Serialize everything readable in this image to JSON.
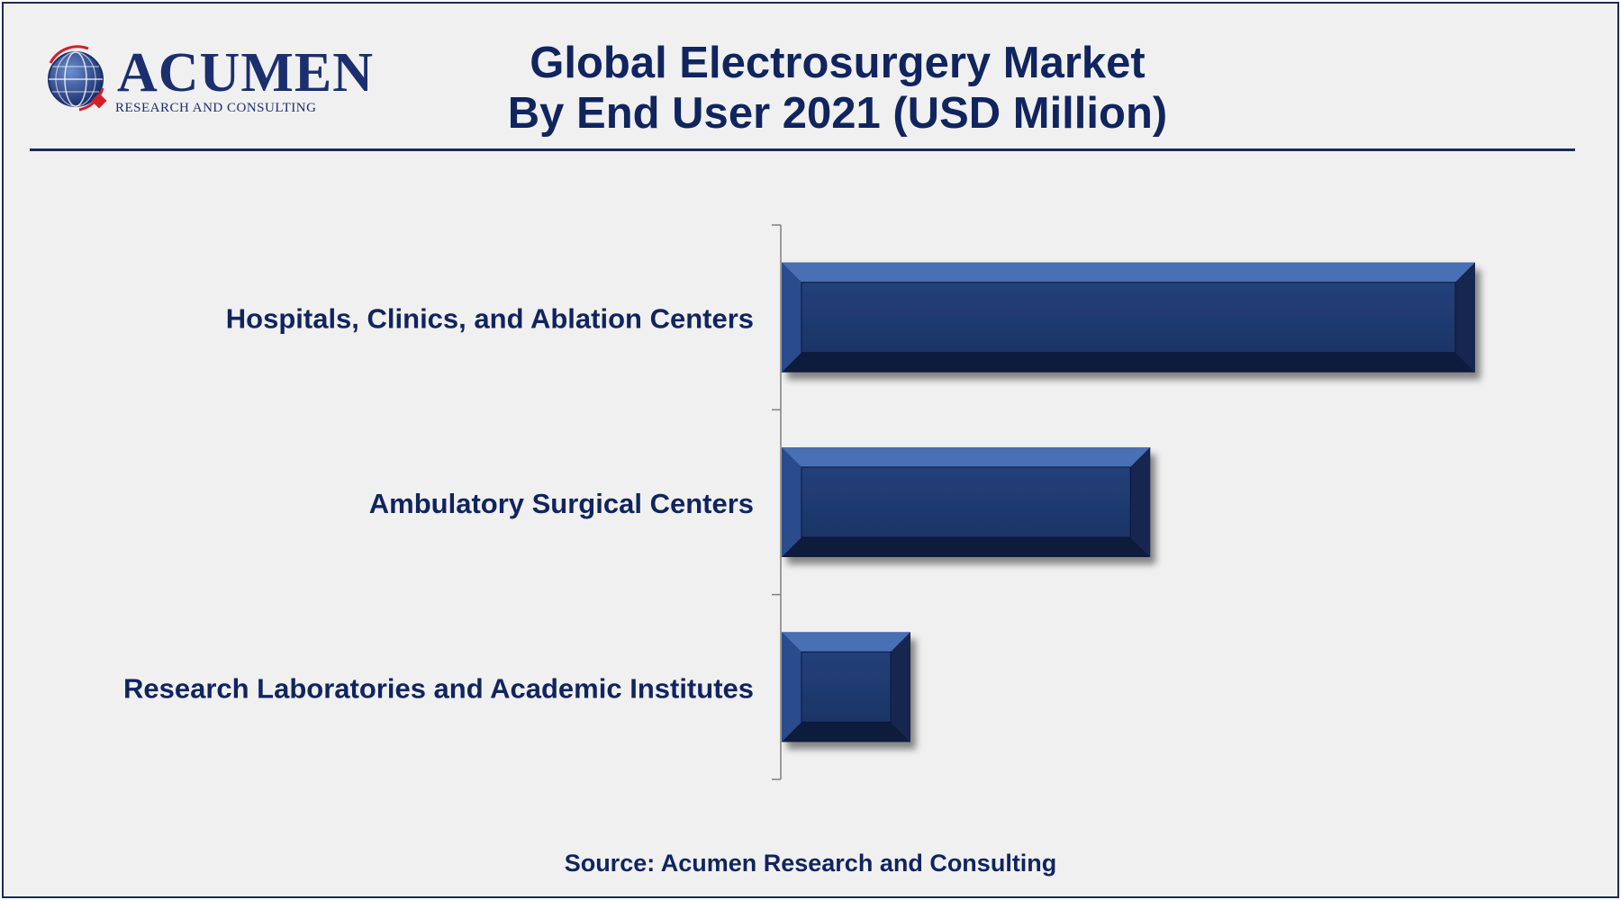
{
  "logo": {
    "name": "ACUMEN",
    "subtitle": "RESEARCH AND CONSULTING"
  },
  "title_line1": "Global Electrosurgery Market",
  "title_line2": "By End User 2021 (USD Million)",
  "source": "Source: Acumen Research and Consulting",
  "colors": {
    "bar_face": "#1c3566",
    "bar_light": "#4a6fb5",
    "bar_dark": "#0f1d3d",
    "text": "#10245e",
    "axis": "#808080"
  },
  "chart_data": {
    "type": "bar",
    "orientation": "horizontal",
    "categories": [
      "Hospitals, Clinics, and Ablation Centers",
      "Ambulatory Surgical Centers",
      "Research Laboratories and Academic Institutes"
    ],
    "values": [
      3500,
      1860,
      650
    ],
    "xlim": [
      0,
      4000
    ],
    "title": "Global Electrosurgery Market By End User 2021 (USD Million)",
    "grid": false,
    "legend": "none"
  }
}
